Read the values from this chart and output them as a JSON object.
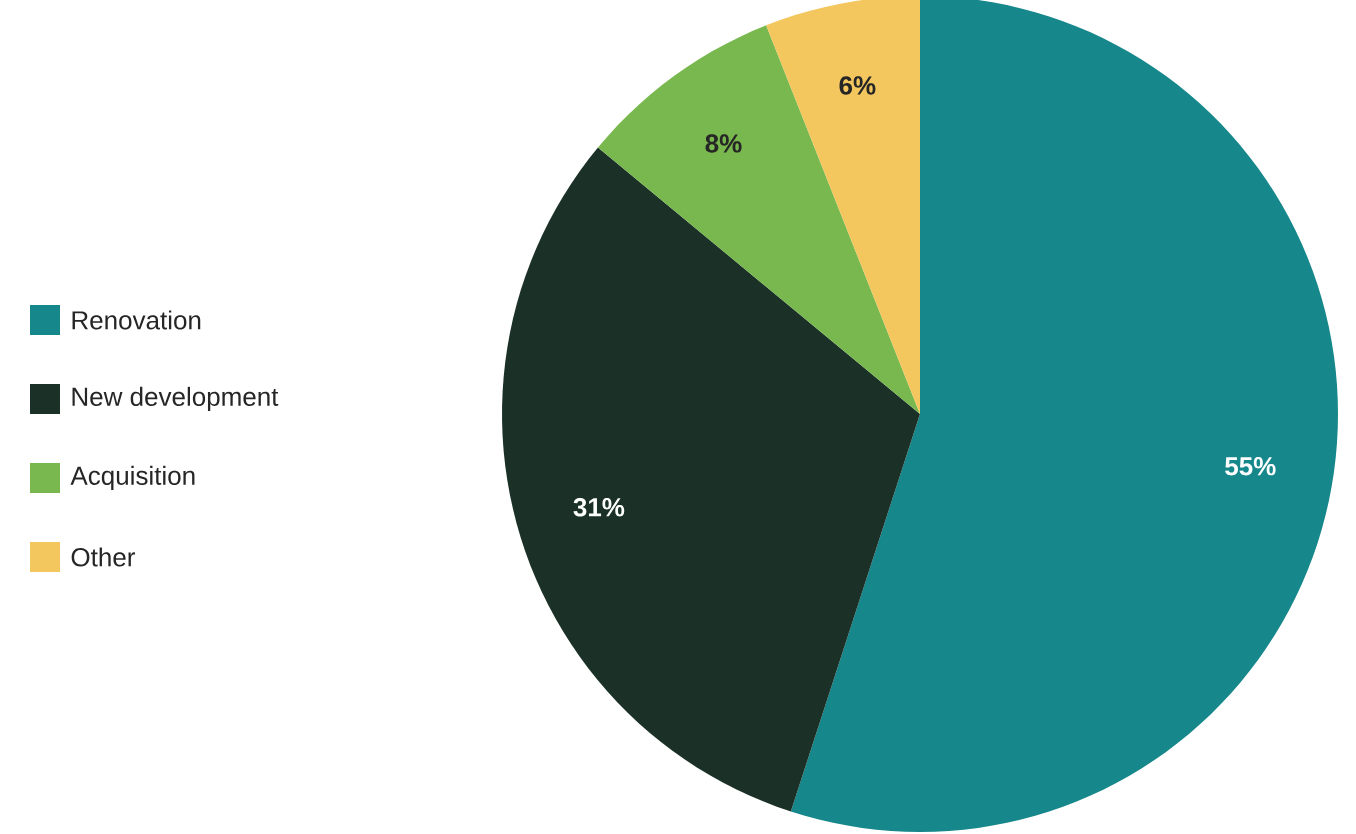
{
  "chart_data": {
    "type": "pie",
    "categories": [
      "Renovation",
      "New development",
      "Acquisition",
      "Other"
    ],
    "values": [
      55,
      31,
      8,
      6
    ],
    "colors": [
      "#16878a",
      "#1b3127",
      "#78b84e",
      "#f3c75e"
    ],
    "value_labels": [
      "55%",
      "31%",
      "8%",
      "6%"
    ],
    "legend": "left"
  }
}
